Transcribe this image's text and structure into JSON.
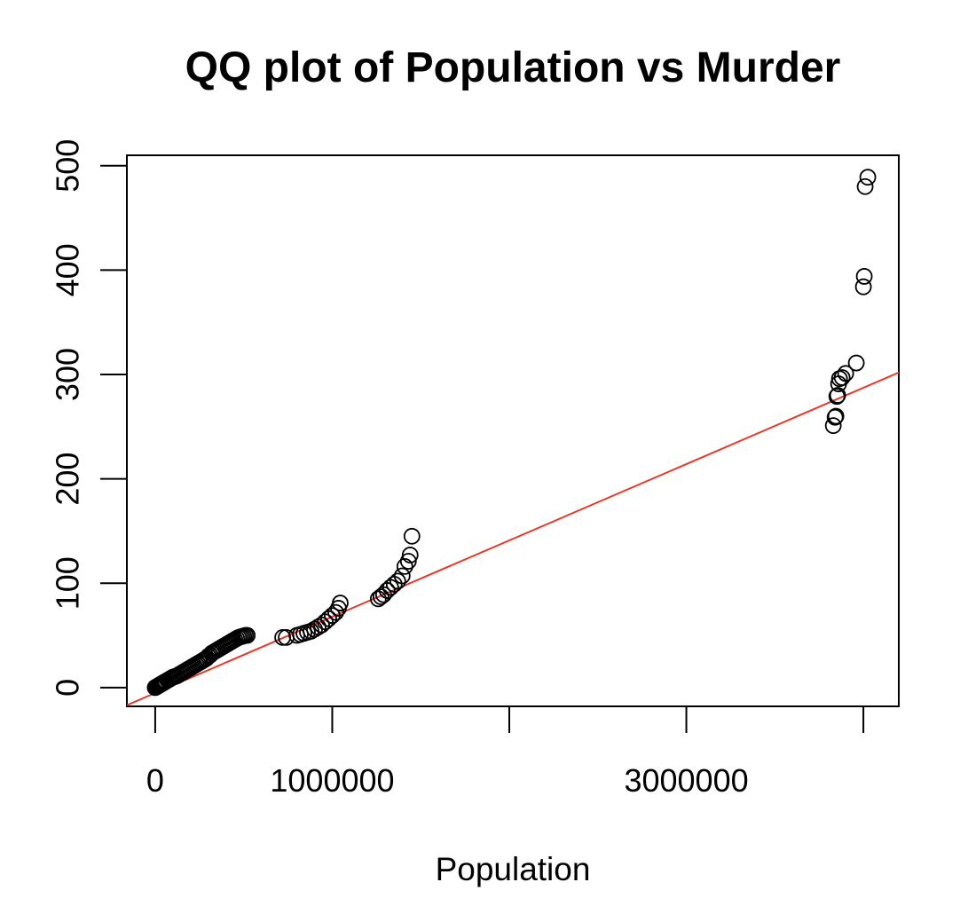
{
  "chart_data": {
    "type": "scatter",
    "title": "QQ plot of Population vs Murder",
    "xlabel": "Population",
    "ylabel": "",
    "xlim": [
      -160000,
      4200000
    ],
    "ylim": [
      -18,
      510
    ],
    "x_ticks": [
      0,
      1000000,
      2000000,
      3000000,
      4000000
    ],
    "x_tick_labels": [
      "0",
      "1000000",
      "",
      "3000000",
      ""
    ],
    "y_ticks": [
      0,
      100,
      200,
      300,
      400,
      500
    ],
    "y_tick_labels": [
      "0",
      "100",
      "200",
      "300",
      "400",
      "500"
    ],
    "grid": false,
    "legend": "none",
    "point_color": "#000000",
    "reference_line": {
      "color": "#e8392b",
      "intercept": -5.2,
      "slope": 7.31e-05
    },
    "points": [
      [
        0,
        0
      ],
      [
        5000,
        0.5
      ],
      [
        10000,
        1
      ],
      [
        15000,
        1.5
      ],
      [
        20000,
        2
      ],
      [
        25000,
        2.5
      ],
      [
        30000,
        3
      ],
      [
        35000,
        3.5
      ],
      [
        40000,
        4
      ],
      [
        45000,
        4.5
      ],
      [
        50000,
        5
      ],
      [
        55000,
        5.5
      ],
      [
        60000,
        6
      ],
      [
        70000,
        7
      ],
      [
        80000,
        8
      ],
      [
        90000,
        9
      ],
      [
        100000,
        10
      ],
      [
        110000,
        10.5
      ],
      [
        120000,
        11
      ],
      [
        130000,
        12
      ],
      [
        140000,
        13
      ],
      [
        150000,
        14
      ],
      [
        160000,
        15
      ],
      [
        170000,
        16
      ],
      [
        180000,
        17
      ],
      [
        190000,
        18
      ],
      [
        200000,
        19
      ],
      [
        210000,
        20
      ],
      [
        220000,
        21
      ],
      [
        230000,
        22
      ],
      [
        240000,
        23
      ],
      [
        250000,
        24
      ],
      [
        260000,
        25
      ],
      [
        270000,
        26
      ],
      [
        280000,
        27
      ],
      [
        290000,
        28
      ],
      [
        300000,
        30
      ],
      [
        310000,
        31
      ],
      [
        320000,
        33
      ],
      [
        330000,
        34
      ],
      [
        340000,
        35
      ],
      [
        350000,
        36
      ],
      [
        360000,
        37
      ],
      [
        370000,
        38
      ],
      [
        380000,
        39
      ],
      [
        390000,
        40
      ],
      [
        400000,
        41
      ],
      [
        410000,
        42
      ],
      [
        420000,
        43
      ],
      [
        430000,
        44
      ],
      [
        440000,
        45
      ],
      [
        450000,
        46
      ],
      [
        460000,
        47
      ],
      [
        470000,
        48
      ],
      [
        480000,
        48.5
      ],
      [
        490000,
        49
      ],
      [
        500000,
        49.5
      ],
      [
        510000,
        50
      ],
      [
        520000,
        50
      ],
      [
        720000,
        48
      ],
      [
        740000,
        48
      ],
      [
        800000,
        50
      ],
      [
        820000,
        51
      ],
      [
        840000,
        52
      ],
      [
        860000,
        53
      ],
      [
        880000,
        54
      ],
      [
        900000,
        56
      ],
      [
        920000,
        58
      ],
      [
        940000,
        60
      ],
      [
        960000,
        63
      ],
      [
        980000,
        66
      ],
      [
        1000000,
        69
      ],
      [
        1020000,
        72
      ],
      [
        1035000,
        76
      ],
      [
        1045000,
        81
      ],
      [
        1260000,
        85
      ],
      [
        1275000,
        87
      ],
      [
        1290000,
        89
      ],
      [
        1310000,
        93
      ],
      [
        1330000,
        96
      ],
      [
        1350000,
        99
      ],
      [
        1370000,
        102
      ],
      [
        1395000,
        107
      ],
      [
        1410000,
        116
      ],
      [
        1430000,
        121
      ],
      [
        1440000,
        127
      ],
      [
        1450000,
        145
      ],
      [
        3830000,
        251
      ],
      [
        3840000,
        259
      ],
      [
        3845000,
        260
      ],
      [
        3850000,
        279
      ],
      [
        3855000,
        280
      ],
      [
        3860000,
        291
      ],
      [
        3865000,
        296
      ],
      [
        3880000,
        297
      ],
      [
        3900000,
        301
      ],
      [
        3960000,
        311
      ],
      [
        4000000,
        384
      ],
      [
        4005000,
        394
      ],
      [
        4010000,
        480
      ],
      [
        4025000,
        489
      ]
    ]
  }
}
